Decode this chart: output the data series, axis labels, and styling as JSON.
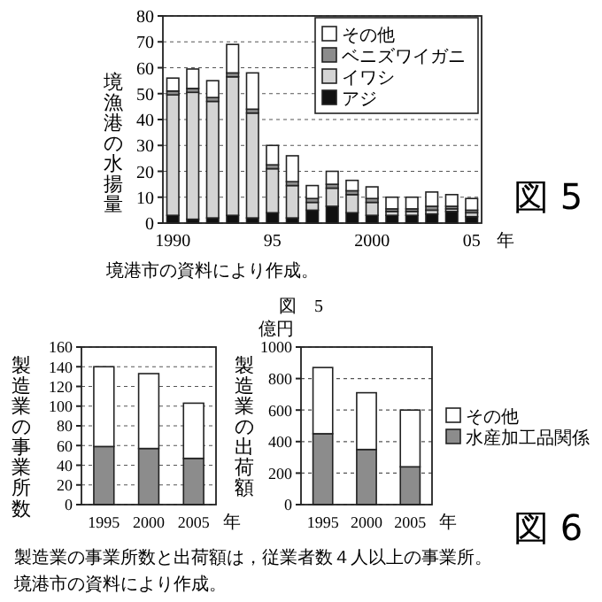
{
  "chart_data": [
    {
      "type": "bar",
      "stacked": true,
      "ylabel": "境漁港の水揚量",
      "xlabel": "年",
      "categories": [
        "1990",
        null,
        null,
        null,
        null,
        "95",
        null,
        null,
        null,
        null,
        "2000",
        null,
        null,
        null,
        null,
        "05"
      ],
      "ylim": [
        0,
        80
      ],
      "yticks": [
        0,
        10,
        20,
        30,
        40,
        50,
        60,
        70,
        80
      ],
      "grid": "y",
      "legend": "top right",
      "series": [
        {
          "name": "アジ",
          "color": "#111111",
          "values": [
            3,
            1.5,
            2,
            3,
            2,
            4,
            2,
            5,
            6.5,
            4,
            3,
            3,
            3,
            3.5,
            4.5,
            2.5
          ]
        },
        {
          "name": "イワシ",
          "color": "#d4d4d4",
          "values": [
            46.5,
            49,
            45,
            53.5,
            40.5,
            17,
            12.5,
            3,
            7,
            7,
            5,
            1.5,
            1.5,
            1.5,
            1,
            1.5
          ]
        },
        {
          "name": "ベニズワイガニ",
          "color": "#8c8c8c",
          "values": [
            1.5,
            1.5,
            1.5,
            1.5,
            1.5,
            1.5,
            1.5,
            1.5,
            1.5,
            1.5,
            1.5,
            1,
            1,
            1.5,
            1,
            1
          ]
        },
        {
          "name": "その他",
          "color": "#ffffff",
          "values": [
            5,
            7.5,
            6.5,
            11,
            14,
            7.5,
            10,
            5,
            5,
            4,
            4.5,
            4.5,
            4.5,
            5.5,
            4.5,
            4.5
          ]
        }
      ],
      "annotations": [
        "境港市の資料により作成。",
        "図　5",
        "図 5"
      ]
    },
    {
      "type": "bar",
      "stacked": true,
      "ylabel": "製造業の事業所数",
      "xlabel": "年",
      "categories": [
        "1995",
        "2000",
        "2005"
      ],
      "ylim": [
        0,
        160
      ],
      "yticks": [
        0,
        20,
        40,
        60,
        80,
        100,
        120,
        140,
        160
      ],
      "grid": "y",
      "series": [
        {
          "color": "#8c8c8c",
          "values": [
            59,
            57,
            47
          ]
        },
        {
          "color": "#ffffff",
          "values": [
            81,
            76,
            56
          ]
        }
      ],
      "annotations": [
        "製造業の事業所数と出荷額は，従業者数４人以上の事業所。",
        "境港市の資料により作成。"
      ]
    },
    {
      "type": "bar",
      "stacked": true,
      "ylabel": "製造業の出荷額",
      "xlabel": "年",
      "categories": [
        "1995",
        "2000",
        "2005"
      ],
      "ylim": [
        0,
        1000
      ],
      "yticks": [
        0,
        200,
        400,
        600,
        800,
        1000
      ],
      "grid": "y",
      "legend": "right",
      "series": [
        {
          "name": "水産加工品関係",
          "color": "#8c8c8c",
          "values": [
            450,
            350,
            240
          ]
        },
        {
          "name": "その他",
          "color": "#ffffff",
          "values": [
            420,
            360,
            360
          ]
        }
      ],
      "annotations": [
        "億円",
        "図 6"
      ]
    }
  ]
}
